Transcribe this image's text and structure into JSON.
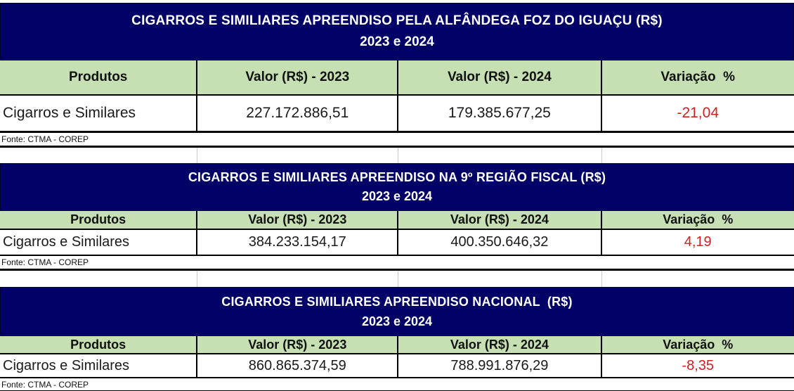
{
  "colors": {
    "title_background": "#000066",
    "title_text": "#ffffff",
    "header_background": "#c6e0b4",
    "variation_negative_text": "#cc2222",
    "border": "#000000"
  },
  "columns": [
    "Produtos",
    "Valor (R$) - 2023",
    "Valor (R$) - 2024",
    "Variação  %"
  ],
  "tables": [
    {
      "title": "CIGARROS E SIMILIARES APREENDISO PELA ALFÂNDEGA FOZ DO IGUAÇU (R$)",
      "subtitle": "2023 e 2024",
      "product": "Cigarros e Similares",
      "valor_2023": "227.172.886,51",
      "valor_2024": "179.385.677,25",
      "variacao": "-21,04",
      "fonte": "Fonte: CTMA - COREP"
    },
    {
      "title": "CIGARROS E SIMILIARES APREENDISO NA 9º REGIÃO FISCAL (R$)",
      "subtitle": "2023 e 2024",
      "product": "Cigarros e Similares",
      "valor_2023": "384.233.154,17",
      "valor_2024": "400.350.646,32",
      "variacao": "4,19",
      "fonte": "Fonte: CTMA - COREP"
    },
    {
      "title": "CIGARROS E SIMILIARES APREENDISO NACIONAL  (R$)",
      "subtitle": "2023 e 2024",
      "product": "Cigarros e Similares",
      "valor_2023": "860.865.374,59",
      "valor_2024": "788.991.876,29",
      "variacao": "-8,35",
      "fonte": "Fonte: CTMA - COREP"
    }
  ]
}
